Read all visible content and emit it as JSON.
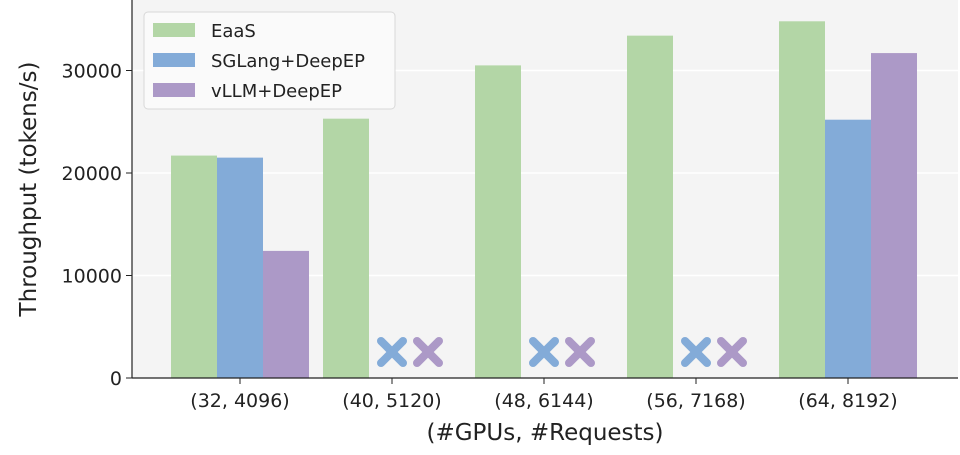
{
  "chart_data": {
    "type": "bar",
    "title": "",
    "xlabel": "(#GPUs, #Requests)",
    "ylabel": "Throughput (tokens/s)",
    "ylim": [
      0,
      37000
    ],
    "yticks": [
      0,
      10000,
      20000,
      30000
    ],
    "grid": true,
    "legend_position": "top-left",
    "categories": [
      "(32, 4096)",
      "(40, 5120)",
      "(48, 6144)",
      "(56, 7168)",
      "(64, 8192)"
    ],
    "series": [
      {
        "name": "EaaS",
        "color": "#b3d6a6",
        "values": [
          21700,
          25300,
          30500,
          33400,
          34800
        ]
      },
      {
        "name": "SGLang+DeepEP",
        "color": "#83abd8",
        "values": [
          21500,
          null,
          null,
          null,
          25200
        ]
      },
      {
        "name": "vLLM+DeepEP",
        "color": "#ac99c7",
        "values": [
          12400,
          null,
          null,
          null,
          31700
        ]
      }
    ],
    "missing_marker": "x (failed / not available)"
  }
}
